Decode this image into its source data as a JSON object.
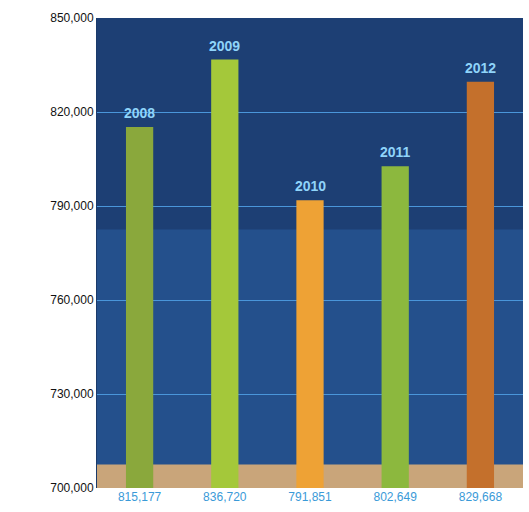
{
  "chart_data": {
    "type": "bar",
    "categories": [
      "2008",
      "2009",
      "2010",
      "2011",
      "2012"
    ],
    "values": [
      815177,
      836720,
      791851,
      802649,
      829668
    ],
    "value_labels": [
      "815,177",
      "836,720",
      "791,851",
      "802,649",
      "829,668"
    ],
    "colors": [
      "#8aa83c",
      "#a4c83a",
      "#eea235",
      "#8cb83e",
      "#c4702c"
    ],
    "ylim": [
      700000,
      850000
    ],
    "yticks": [
      {
        "value": 700000,
        "label": "700,000"
      },
      {
        "value": 730000,
        "label": "730,000"
      },
      {
        "value": 760000,
        "label": "760,000"
      },
      {
        "value": 790000,
        "label": "790,000"
      },
      {
        "value": 820000,
        "label": "820,000"
      },
      {
        "value": 850000,
        "label": "850,000"
      }
    ],
    "grid": true,
    "data_labels": true
  }
}
